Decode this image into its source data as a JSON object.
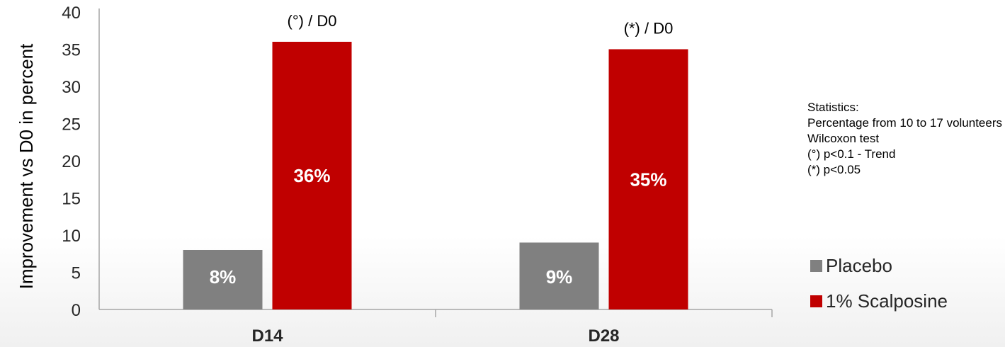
{
  "chart_data": {
    "type": "bar",
    "categories": [
      "D14",
      "D28"
    ],
    "ylabel": "Improvement vs D0 in percent",
    "ylim": [
      0,
      40
    ],
    "yticks": [
      0,
      5,
      10,
      15,
      20,
      25,
      30,
      35,
      40
    ],
    "series": [
      {
        "name": "Placebo",
        "color": "#808080",
        "values": [
          8,
          9
        ],
        "labels": [
          "8%",
          "9%"
        ]
      },
      {
        "name": "1% Scalposine",
        "color": "#c00000",
        "values": [
          36,
          35
        ],
        "labels": [
          "36%",
          "35%"
        ]
      }
    ],
    "annotations": [
      "(°) / D0",
      "(*) / D0"
    ],
    "legend_position": "right"
  },
  "stats": {
    "lines": [
      "Statistics:",
      "Percentage from 10 to 17 volunteers",
      "Wilcoxon test",
      "(°) p<0.1 - Trend",
      "(*) p<0.05"
    ]
  }
}
